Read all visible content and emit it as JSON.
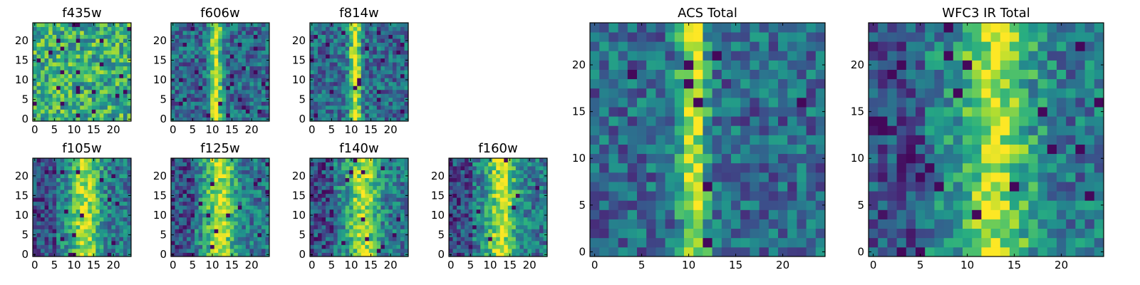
{
  "figure_title": "",
  "chart_data": [
    {
      "id": "f435w",
      "type": "heatmap",
      "title": "f435w",
      "colormap": "viridis",
      "grid_size": 25,
      "xlim": [
        0,
        24
      ],
      "ylim": [
        0,
        24
      ],
      "xticks": [
        0,
        5,
        10,
        15,
        20
      ],
      "yticks": [
        0,
        5,
        10,
        15,
        20
      ],
      "xtick_labels": [
        "0",
        "5",
        "10",
        "15",
        "20"
      ],
      "ytick_labels": [
        "0",
        "5",
        "10",
        "15",
        "20"
      ],
      "pattern": "uniform noise",
      "stripe_center_x": null
    },
    {
      "id": "f606w",
      "type": "heatmap",
      "title": "f606w",
      "colormap": "viridis",
      "grid_size": 25,
      "xlim": [
        0,
        24
      ],
      "ylim": [
        0,
        24
      ],
      "xticks": [
        0,
        5,
        10,
        15,
        20
      ],
      "yticks": [
        0,
        5,
        10,
        15,
        20
      ],
      "xtick_labels": [
        "0",
        "5",
        "10",
        "15",
        "20"
      ],
      "ytick_labels": [
        "0",
        "5",
        "10",
        "15",
        "20"
      ],
      "pattern": "vertical bright stripe",
      "stripe_center_x": 11
    },
    {
      "id": "f814w",
      "type": "heatmap",
      "title": "f814w",
      "colormap": "viridis",
      "grid_size": 25,
      "xlim": [
        0,
        24
      ],
      "ylim": [
        0,
        24
      ],
      "xticks": [
        0,
        5,
        10,
        15,
        20
      ],
      "yticks": [
        0,
        5,
        10,
        15,
        20
      ],
      "xtick_labels": [
        "0",
        "5",
        "10",
        "15",
        "20"
      ],
      "ytick_labels": [
        "0",
        "5",
        "10",
        "15",
        "20"
      ],
      "pattern": "vertical bright stripe",
      "stripe_center_x": 11
    },
    {
      "id": "f105w",
      "type": "heatmap",
      "title": "f105w",
      "colormap": "viridis",
      "grid_size": 25,
      "xlim": [
        0,
        24
      ],
      "ylim": [
        0,
        24
      ],
      "xticks": [
        0,
        5,
        10,
        15,
        20
      ],
      "yticks": [
        0,
        5,
        10,
        15,
        20
      ],
      "xtick_labels": [
        "0",
        "5",
        "10",
        "15",
        "20"
      ],
      "ytick_labels": [
        "0",
        "5",
        "10",
        "15",
        "20"
      ],
      "pattern": "diffuse bright band",
      "stripe_center_x": 13
    },
    {
      "id": "f125w",
      "type": "heatmap",
      "title": "f125w",
      "colormap": "viridis",
      "grid_size": 25,
      "xlim": [
        0,
        24
      ],
      "ylim": [
        0,
        24
      ],
      "xticks": [
        0,
        5,
        10,
        15,
        20
      ],
      "yticks": [
        0,
        5,
        10,
        15,
        20
      ],
      "xtick_labels": [
        "0",
        "5",
        "10",
        "15",
        "20"
      ],
      "ytick_labels": [
        "0",
        "5",
        "10",
        "15",
        "20"
      ],
      "pattern": "diffuse bright band",
      "stripe_center_x": 12
    },
    {
      "id": "f140w",
      "type": "heatmap",
      "title": "f140w",
      "colormap": "viridis",
      "grid_size": 25,
      "xlim": [
        0,
        24
      ],
      "ylim": [
        0,
        24
      ],
      "xticks": [
        0,
        5,
        10,
        15,
        20
      ],
      "yticks": [
        0,
        5,
        10,
        15,
        20
      ],
      "xtick_labels": [
        "0",
        "5",
        "10",
        "15",
        "20"
      ],
      "ytick_labels": [
        "0",
        "5",
        "10",
        "15",
        "20"
      ],
      "pattern": "diffuse bright band",
      "stripe_center_x": 13
    },
    {
      "id": "f160w",
      "type": "heatmap",
      "title": "f160w",
      "colormap": "viridis",
      "grid_size": 25,
      "xlim": [
        0,
        24
      ],
      "ylim": [
        0,
        24
      ],
      "xticks": [
        0,
        5,
        10,
        15,
        20
      ],
      "yticks": [
        0,
        5,
        10,
        15,
        20
      ],
      "xtick_labels": [
        "0",
        "5",
        "10",
        "15",
        "20"
      ],
      "ytick_labels": [
        "0",
        "5",
        "10",
        "15",
        "20"
      ],
      "pattern": "diffuse bright band",
      "stripe_center_x": 13
    },
    {
      "id": "acs-total",
      "type": "heatmap",
      "title": "ACS Total",
      "colormap": "viridis",
      "grid_size": 25,
      "xlim": [
        0,
        24
      ],
      "ylim": [
        0,
        24
      ],
      "xticks": [
        0,
        5,
        10,
        15,
        20
      ],
      "yticks": [
        0,
        5,
        10,
        15,
        20
      ],
      "xtick_labels": [
        "0",
        "5",
        "10",
        "15",
        "20"
      ],
      "ytick_labels": [
        "0",
        "5",
        "10",
        "15",
        "20"
      ],
      "pattern": "vertical bright stripe",
      "stripe_center_x": 10.5
    },
    {
      "id": "wfc3-ir-total",
      "type": "heatmap",
      "title": "WFC3 IR Total",
      "colormap": "viridis",
      "grid_size": 25,
      "xlim": [
        0,
        24
      ],
      "ylim": [
        0,
        24
      ],
      "xticks": [
        0,
        5,
        10,
        15,
        20
      ],
      "yticks": [
        0,
        5,
        10,
        15,
        20
      ],
      "xtick_labels": [
        "0",
        "5",
        "10",
        "15",
        "20"
      ],
      "ytick_labels": [
        "0",
        "5",
        "10",
        "15",
        "20"
      ],
      "pattern": "diffuse bright band",
      "stripe_center_x": 13
    }
  ]
}
